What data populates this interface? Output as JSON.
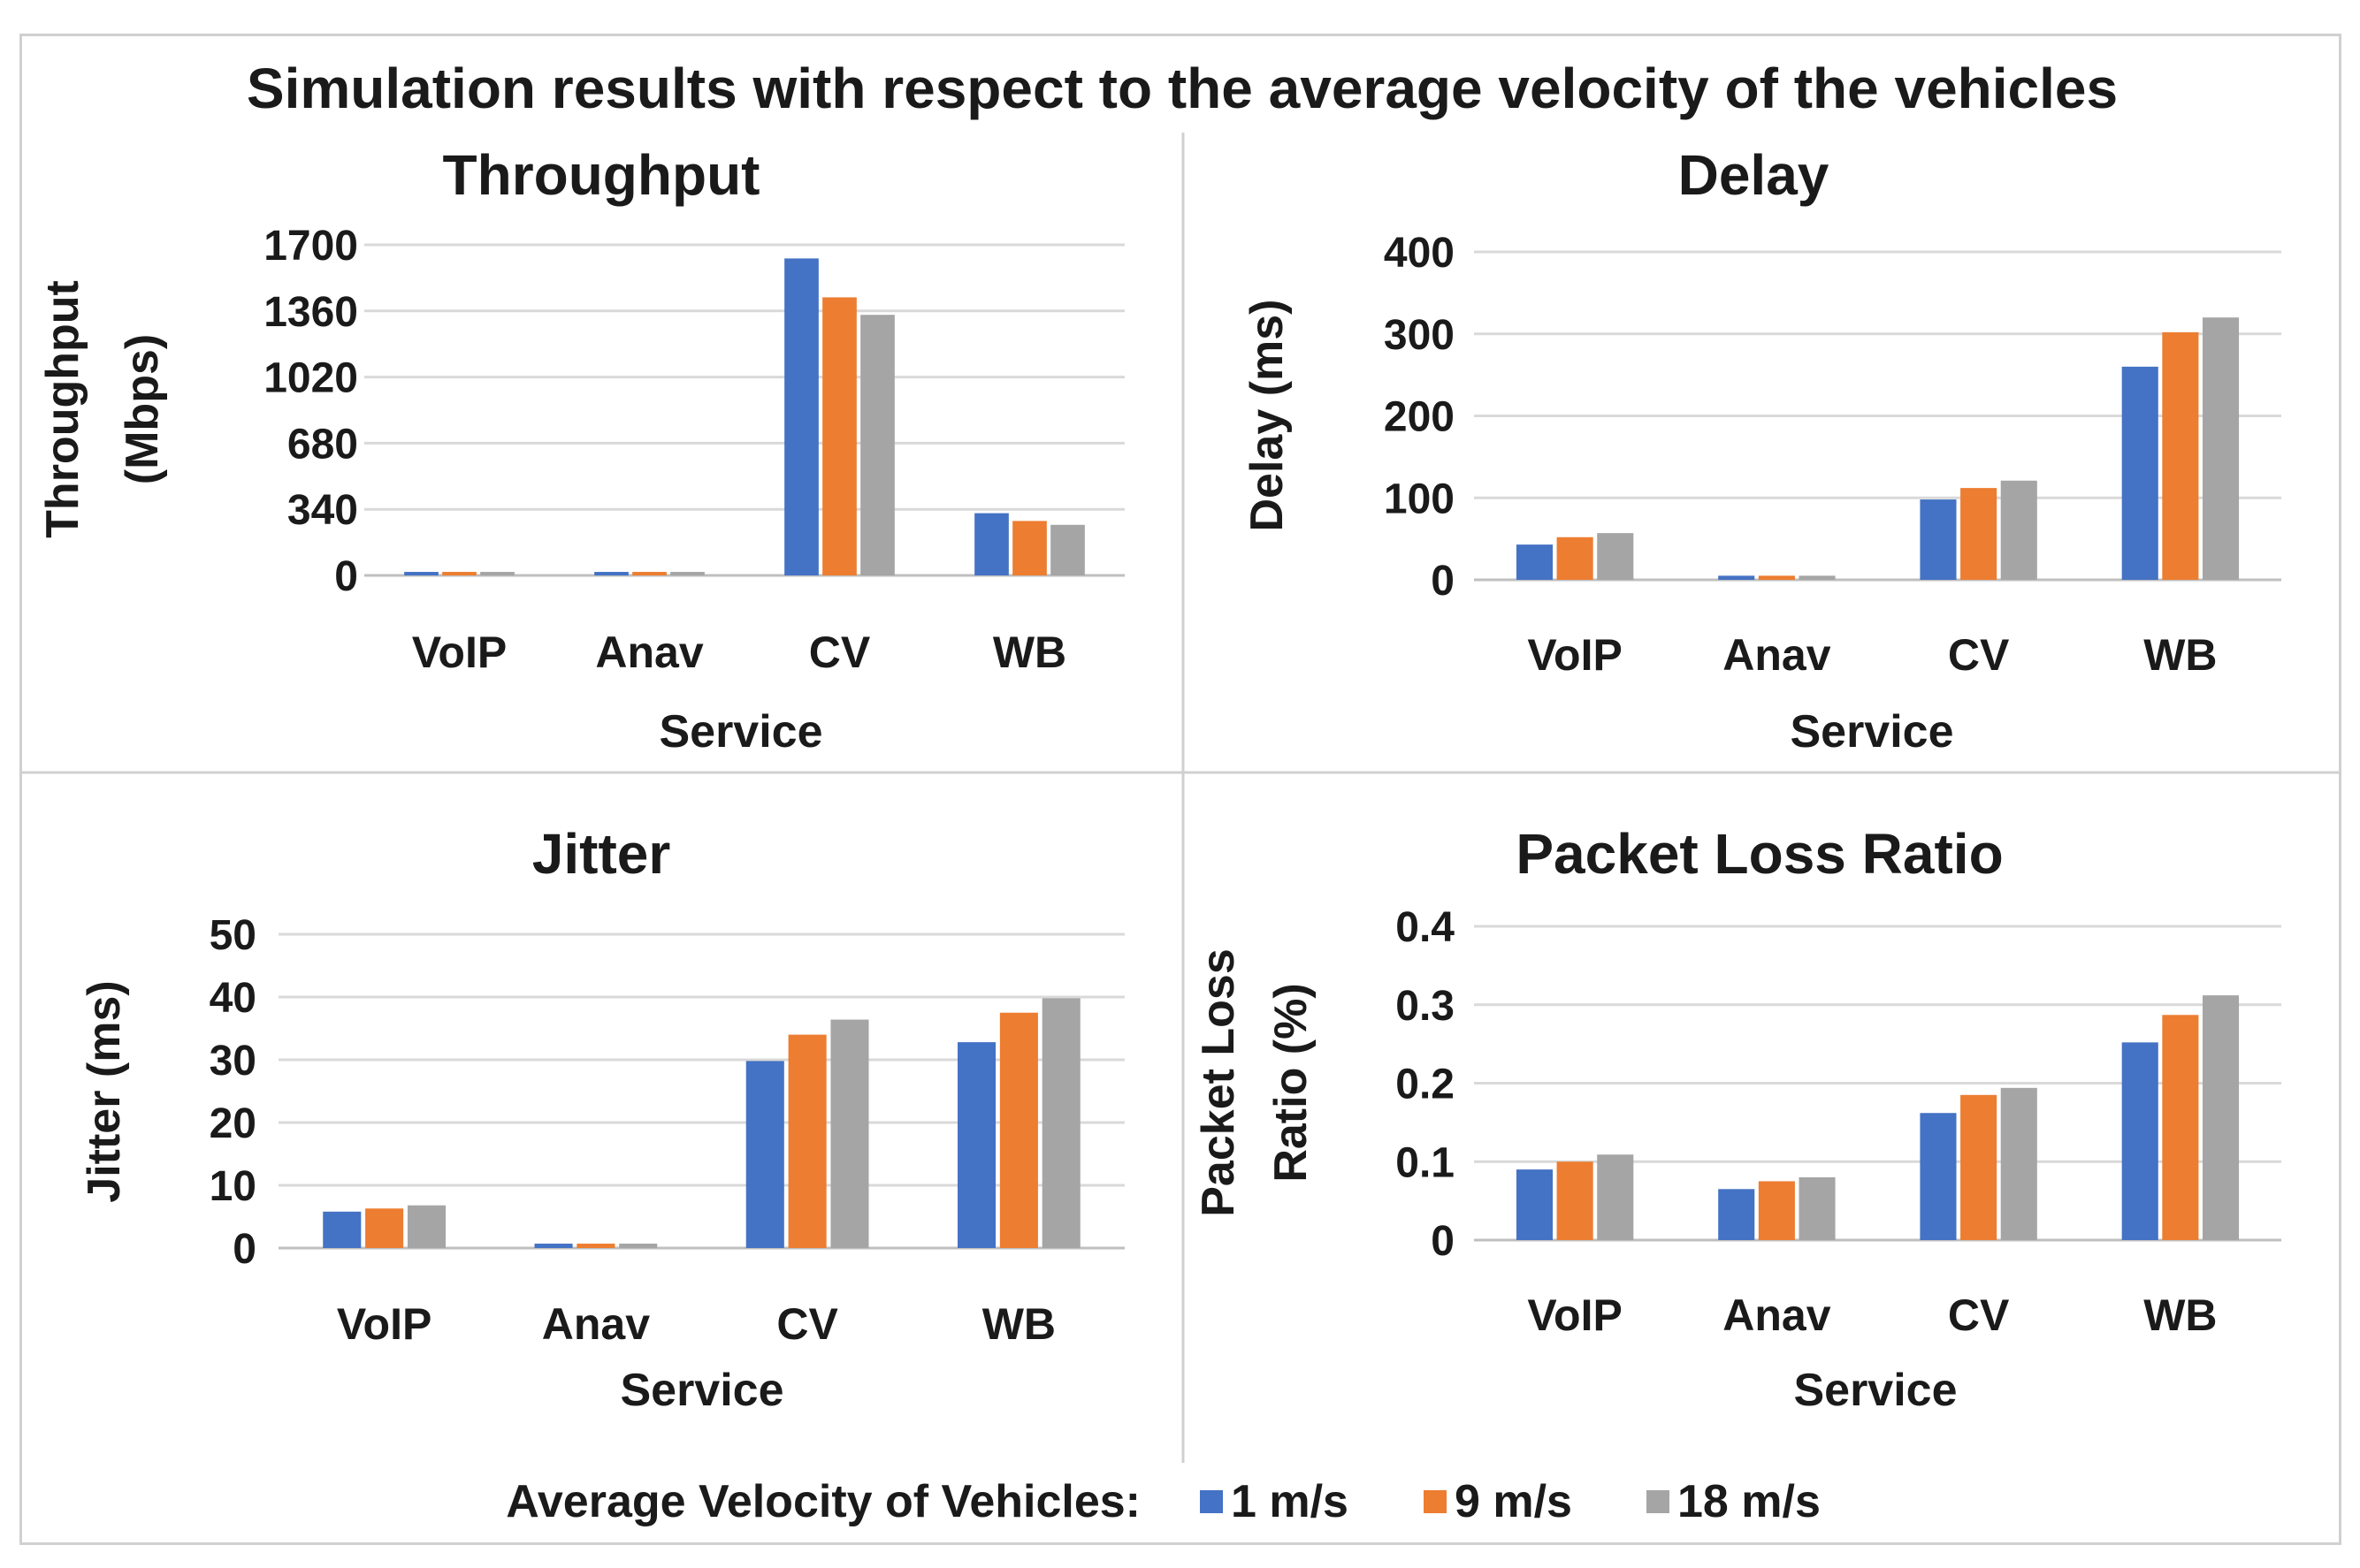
{
  "figure_title": "Simulation results with respect to the average velocity of the vehicles",
  "legend": {
    "label": "Average Velocity of Vehicles:",
    "entries": [
      "1 m/s",
      "9 m/s",
      "18 m/s"
    ]
  },
  "colors": {
    "series1": "#4472C4",
    "series2": "#ED7D31",
    "series3": "#A5A5A5",
    "grid": "#d9d9d9",
    "text": "#1a1a1a"
  },
  "chart_data": [
    {
      "type": "bar",
      "title": "Throughput",
      "xlabel": "Service",
      "ylabel": [
        "Throughput",
        "(Mbps)"
      ],
      "categories": [
        "VoIP",
        "Anav",
        "CV",
        "WB"
      ],
      "ylim": [
        0,
        1700
      ],
      "yticks": [
        0,
        340,
        680,
        1020,
        1360,
        1700
      ],
      "series": [
        {
          "name": "1 m/s",
          "values": [
            18,
            18,
            1630,
            320
          ]
        },
        {
          "name": "9 m/s",
          "values": [
            18,
            18,
            1430,
            280
          ]
        },
        {
          "name": "18 m/s",
          "values": [
            18,
            18,
            1340,
            260
          ]
        }
      ]
    },
    {
      "type": "bar",
      "title": "Delay",
      "xlabel": "Service",
      "ylabel": [
        "Delay (ms)"
      ],
      "categories": [
        "VoIP",
        "Anav",
        "CV",
        "WB"
      ],
      "ylim": [
        0,
        400
      ],
      "yticks": [
        0,
        100,
        200,
        300,
        400
      ],
      "series": [
        {
          "name": "1 m/s",
          "values": [
            43,
            5,
            98,
            260
          ]
        },
        {
          "name": "9 m/s",
          "values": [
            52,
            5,
            112,
            302
          ]
        },
        {
          "name": "18 m/s",
          "values": [
            57,
            5,
            121,
            320
          ]
        }
      ]
    },
    {
      "type": "bar",
      "title": "Jitter",
      "xlabel": "Service",
      "ylabel": [
        "Jitter (ms)"
      ],
      "categories": [
        "VoIP",
        "Anav",
        "CV",
        "WB"
      ],
      "ylim": [
        0,
        50
      ],
      "yticks": [
        0,
        10,
        20,
        30,
        40,
        50
      ],
      "series": [
        {
          "name": "1 m/s",
          "values": [
            5.8,
            0.7,
            29.8,
            32.8
          ]
        },
        {
          "name": "9 m/s",
          "values": [
            6.3,
            0.7,
            34.0,
            37.5
          ]
        },
        {
          "name": "18 m/s",
          "values": [
            6.8,
            0.7,
            36.4,
            39.8
          ]
        }
      ]
    },
    {
      "type": "bar",
      "title": "Packet Loss Ratio",
      "xlabel": "Service",
      "ylabel": [
        "Packet Loss",
        "Ratio (%)"
      ],
      "categories": [
        "VoIP",
        "Anav",
        "CV",
        "WB"
      ],
      "ylim": [
        0,
        0.4
      ],
      "yticks": [
        0,
        0.1,
        0.2,
        0.3,
        0.4
      ],
      "series": [
        {
          "name": "1 m/s",
          "values": [
            0.09,
            0.065,
            0.162,
            0.252
          ]
        },
        {
          "name": "9 m/s",
          "values": [
            0.1,
            0.075,
            0.185,
            0.287
          ]
        },
        {
          "name": "18 m/s",
          "values": [
            0.109,
            0.08,
            0.194,
            0.312
          ]
        }
      ]
    }
  ]
}
